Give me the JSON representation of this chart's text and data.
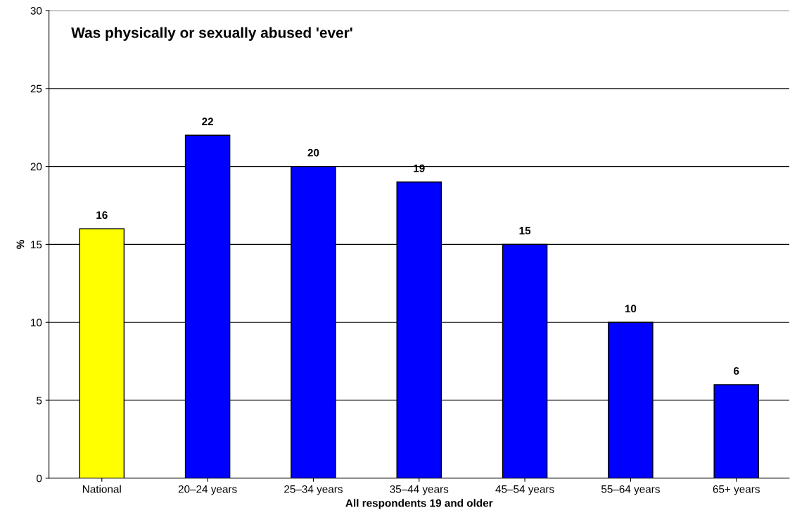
{
  "chart_data": {
    "type": "bar",
    "title": "Was physically or sexually abused 'ever'",
    "xlabel": "All respondents 19 and older",
    "ylabel": "%",
    "categories": [
      "National",
      "20–24 years",
      "25–34 years",
      "35–44 years",
      "45–54 years",
      "55–64 years",
      "65+ years"
    ],
    "values": [
      16,
      22,
      20,
      19,
      15,
      10,
      6
    ],
    "colors": [
      "#ffff00",
      "#0000ff",
      "#0000ff",
      "#0000ff",
      "#0000ff",
      "#0000ff",
      "#0000ff"
    ],
    "ylim": [
      0,
      30
    ],
    "yticks": [
      0,
      5,
      10,
      15,
      20,
      25,
      30
    ],
    "grid": "y",
    "data_labels": true
  }
}
